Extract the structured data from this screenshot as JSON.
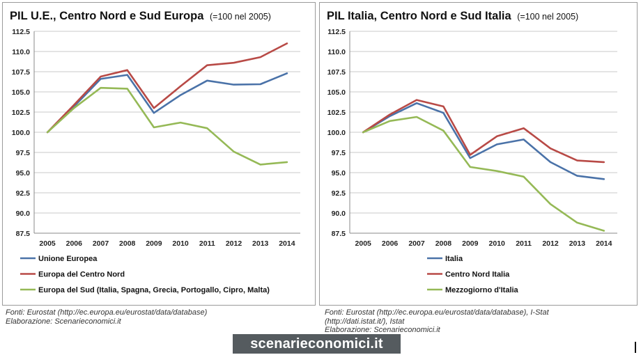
{
  "chart_data": [
    {
      "type": "line",
      "title": "PIL U.E., Centro Nord e Sud Europa",
      "subtitle": "(=100 nel 2005)",
      "x": [
        "2005",
        "2006",
        "2007",
        "2008",
        "2009",
        "2010",
        "2011",
        "2012",
        "2013",
        "2014"
      ],
      "ylim": [
        87.5,
        112.5
      ],
      "yticks": [
        "87.5",
        "90.0",
        "92.5",
        "95.0",
        "97.5",
        "100.0",
        "102.5",
        "105.0",
        "107.5",
        "110.0",
        "112.5"
      ],
      "grid": true,
      "legend_position": "bottom",
      "series": [
        {
          "name": "Unione Europea",
          "color": "#4a72a8",
          "values": [
            100.0,
            103.2,
            106.6,
            107.1,
            102.4,
            104.6,
            106.4,
            105.9,
            105.95,
            107.3
          ]
        },
        {
          "name": "Europa del Centro Nord",
          "color": "#b84a46",
          "values": [
            100.0,
            103.4,
            106.9,
            107.7,
            103.0,
            105.7,
            108.3,
            108.6,
            109.3,
            111.0
          ]
        },
        {
          "name": "Europa del Sud (Italia, Spagna, Grecia, Portogallo, Cipro, Malta)",
          "color": "#95b956",
          "values": [
            100.0,
            103.0,
            105.5,
            105.4,
            100.6,
            101.2,
            100.5,
            97.6,
            96.0,
            96.3
          ]
        }
      ],
      "source_lines": [
        "Fonti: Eurostat (http://ec.europa.eu/eurostat/data/database)",
        "Elaborazione: Scenarieconomici.it"
      ]
    },
    {
      "type": "line",
      "title": "PIL Italia, Centro Nord e Sud Italia",
      "subtitle": "(=100 nel 2005)",
      "x": [
        "2005",
        "2006",
        "2007",
        "2008",
        "2009",
        "2010",
        "2011",
        "2012",
        "2013",
        "2014"
      ],
      "ylim": [
        87.5,
        112.5
      ],
      "yticks": [
        "87.5",
        "90.0",
        "92.5",
        "95.0",
        "97.5",
        "100.0",
        "102.5",
        "105.0",
        "107.5",
        "110.0",
        "112.5"
      ],
      "grid": true,
      "legend_position": "bottom",
      "series": [
        {
          "name": "Italia",
          "color": "#4a72a8",
          "values": [
            100.0,
            102.0,
            103.6,
            102.4,
            96.8,
            98.5,
            99.1,
            96.3,
            94.6,
            94.2
          ]
        },
        {
          "name": "Centro Nord Italia",
          "color": "#b84a46",
          "values": [
            100.0,
            102.2,
            104.0,
            103.2,
            97.2,
            99.5,
            100.5,
            98.0,
            96.5,
            96.3
          ]
        },
        {
          "name": "Mezzogiorno d'Italia",
          "color": "#95b956",
          "values": [
            100.0,
            101.4,
            101.9,
            100.2,
            95.7,
            95.2,
            94.5,
            91.1,
            88.8,
            87.8
          ]
        }
      ],
      "source_lines": [
        "Fonti: Eurostat (http://ec.europa.eu/eurostat/data/database), I-Stat",
        "(http://dati.istat.it/), Istat",
        "Elaborazione: Scenarieconomici.it"
      ]
    }
  ],
  "brand": "scenarieconomici.it"
}
